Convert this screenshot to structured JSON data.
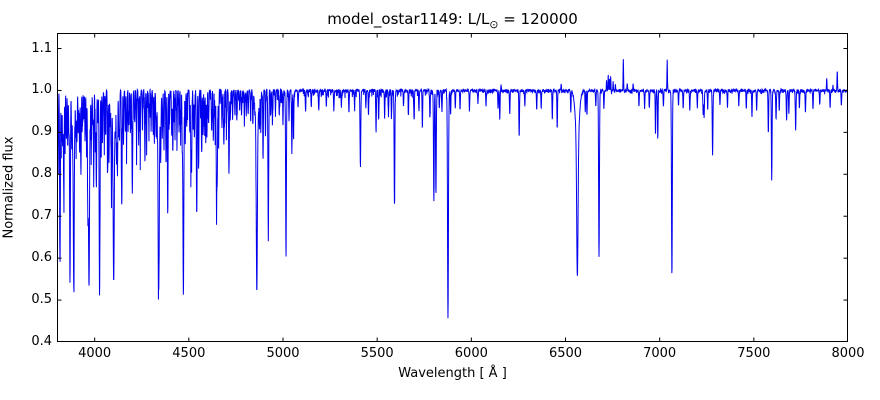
{
  "figure": {
    "title_prefix": "model_ostar1149: L/L",
    "title_sub": "⊙",
    "title_suffix": " = 120000",
    "xlabel": "Wavelength [ Å ]",
    "ylabel": "Normalized flux"
  },
  "chart_data": {
    "type": "line",
    "title": "model_ostar1149: L/L⊙ = 120000",
    "xlabel": "Wavelength [ Å ]",
    "ylabel": "Normalized flux",
    "xlim": [
      3800,
      8000
    ],
    "ylim": [
      0.4,
      1.137
    ],
    "xticks": [
      4000,
      4500,
      5000,
      5500,
      6000,
      6500,
      7000,
      7500,
      8000
    ],
    "yticks": [
      0.4,
      0.5,
      0.6,
      0.7,
      0.8,
      0.9,
      1.0,
      1.1
    ],
    "x_tick_labels": [
      "4000",
      "4500",
      "5000",
      "5500",
      "6000",
      "6500",
      "7000",
      "7500",
      "8000"
    ],
    "y_tick_labels": [
      "0.4",
      "0.5",
      "0.6",
      "0.7",
      "0.8",
      "0.9",
      "1.0",
      "1.1"
    ],
    "grid": false,
    "legend": null,
    "line_color": "#0000EE",
    "axis_color": "#000000",
    "background": "#FFFFFF",
    "continuum_flux": 1.0,
    "flux_min_overall": 0.458,
    "flux_max_overall": 1.073,
    "absorption_lines_format": [
      "wavelength_A",
      "depth_below_continuum",
      "sigma_A"
    ],
    "absorption_lines": [
      [
        3806,
        0.2,
        1.5
      ],
      [
        3816,
        0.385,
        2.0
      ],
      [
        3823,
        0.1,
        1.5
      ],
      [
        3830,
        0.13,
        1.8
      ],
      [
        3836,
        0.24,
        2.0
      ],
      [
        3843,
        0.07,
        1.5
      ],
      [
        3850,
        0.12,
        1.5
      ],
      [
        3857,
        0.14,
        1.5
      ],
      [
        3863,
        0.1,
        1.5
      ],
      [
        3869,
        0.46,
        2.0
      ],
      [
        3878,
        0.11,
        1.5
      ],
      [
        3883,
        0.08,
        1.5
      ],
      [
        3889,
        0.41,
        2.5
      ],
      [
        3889,
        0.06,
        7
      ],
      [
        3900,
        0.09,
        1.5
      ],
      [
        3906,
        0.12,
        1.5
      ],
      [
        3913,
        0.1,
        1.5
      ],
      [
        3920,
        0.15,
        1.6
      ],
      [
        3927,
        0.2,
        1.8
      ],
      [
        3935,
        0.09,
        1.5
      ],
      [
        3942,
        0.07,
        1.5
      ],
      [
        3949,
        0.12,
        1.5
      ],
      [
        3956,
        0.1,
        1.5
      ],
      [
        3964,
        0.25,
        1.8
      ],
      [
        3970,
        0.4,
        2.5
      ],
      [
        3970,
        0.07,
        7
      ],
      [
        3983,
        0.11,
        1.5
      ],
      [
        3990,
        0.08,
        1.5
      ],
      [
        3995,
        0.2,
        1.6
      ],
      [
        4004,
        0.1,
        1.5
      ],
      [
        4009,
        0.23,
        1.8
      ],
      [
        4017,
        0.08,
        1.5
      ],
      [
        4026,
        0.49,
        2.2
      ],
      [
        4035,
        0.09,
        1.5
      ],
      [
        4042,
        0.12,
        1.5
      ],
      [
        4051,
        0.08,
        1.5
      ],
      [
        4058,
        0.11,
        1.5
      ],
      [
        4069,
        0.2,
        1.6
      ],
      [
        4076,
        0.17,
        1.6
      ],
      [
        4083,
        0.08,
        1.5
      ],
      [
        4089,
        0.21,
        1.6
      ],
      [
        4101,
        0.38,
        2.8
      ],
      [
        4101,
        0.08,
        8
      ],
      [
        4110,
        0.07,
        1.5
      ],
      [
        4116,
        0.16,
        1.6
      ],
      [
        4121,
        0.2,
        1.6
      ],
      [
        4128,
        0.1,
        1.5
      ],
      [
        4132,
        0.12,
        1.5
      ],
      [
        4144,
        0.28,
        1.8
      ],
      [
        4153,
        0.13,
        1.5
      ],
      [
        4163,
        0.1,
        1.5
      ],
      [
        4170,
        0.11,
        1.5
      ],
      [
        4181,
        0.08,
        1.5
      ],
      [
        4190,
        0.1,
        1.5
      ],
      [
        4200,
        0.24,
        2.0
      ],
      [
        4213,
        0.08,
        1.5
      ],
      [
        4222,
        0.1,
        1.5
      ],
      [
        4233,
        0.11,
        1.5
      ],
      [
        4242,
        0.09,
        1.5
      ],
      [
        4254,
        0.1,
        1.5
      ],
      [
        4267,
        0.17,
        1.6
      ],
      [
        4276,
        0.1,
        1.5
      ],
      [
        4288,
        0.09,
        1.5
      ],
      [
        4300,
        0.08,
        1.5
      ],
      [
        4310,
        0.1,
        1.5
      ],
      [
        4317,
        0.12,
        1.5
      ],
      [
        4326,
        0.09,
        1.5
      ],
      [
        4340,
        0.39,
        2.8
      ],
      [
        4340,
        0.09,
        8
      ],
      [
        4351,
        0.11,
        1.5
      ],
      [
        4360,
        0.09,
        1.5
      ],
      [
        4368,
        0.13,
        1.5
      ],
      [
        4379,
        0.18,
        1.6
      ],
      [
        4388,
        0.3,
        1.8
      ],
      [
        4397,
        0.08,
        1.5
      ],
      [
        4409,
        0.11,
        1.5
      ],
      [
        4415,
        0.15,
        1.6
      ],
      [
        4426,
        0.09,
        1.5
      ],
      [
        4437,
        0.12,
        1.5
      ],
      [
        4448,
        0.1,
        1.5
      ],
      [
        4457,
        0.08,
        1.5
      ],
      [
        4465,
        0.12,
        1.5
      ],
      [
        4471,
        0.49,
        2.4
      ],
      [
        4481,
        0.13,
        1.5
      ],
      [
        4489,
        0.09,
        1.5
      ],
      [
        4505,
        0.1,
        1.5
      ],
      [
        4511,
        0.16,
        1.5
      ],
      [
        4515,
        0.17,
        1.5
      ],
      [
        4524,
        0.09,
        1.5
      ],
      [
        4530,
        0.11,
        1.5
      ],
      [
        4542,
        0.3,
        2.0
      ],
      [
        4552,
        0.19,
        1.6
      ],
      [
        4568,
        0.15,
        1.5
      ],
      [
        4575,
        0.11,
        1.5
      ],
      [
        4583,
        0.09,
        1.5
      ],
      [
        4590,
        0.13,
        1.5
      ],
      [
        4596,
        0.11,
        1.5
      ],
      [
        4605,
        0.08,
        1.5
      ],
      [
        4621,
        0.1,
        1.5
      ],
      [
        4630,
        0.12,
        1.5
      ],
      [
        4640,
        0.1,
        1.5
      ],
      [
        4647,
        0.275,
        1.8
      ],
      [
        4651,
        0.2,
        1.6
      ],
      [
        4658,
        0.14,
        1.5
      ],
      [
        4676,
        0.09,
        1.5
      ],
      [
        4686,
        0.13,
        2.0
      ],
      [
        4700,
        0.08,
        1.5
      ],
      [
        4713,
        0.2,
        1.8
      ],
      [
        4720,
        0.07,
        1.5
      ],
      [
        4733,
        0.05,
        1.5
      ],
      [
        4745,
        0.06,
        1.5
      ],
      [
        4755,
        0.07,
        1.5
      ],
      [
        4770,
        0.05,
        1.5
      ],
      [
        4780,
        0.06,
        1.5
      ],
      [
        4795,
        0.07,
        1.5
      ],
      [
        4805,
        0.05,
        1.5
      ],
      [
        4815,
        0.06,
        1.5
      ],
      [
        4828,
        0.07,
        1.5
      ],
      [
        4840,
        0.08,
        1.5
      ],
      [
        4861,
        0.39,
        2.8
      ],
      [
        4861,
        0.09,
        8
      ],
      [
        4875,
        0.07,
        1.5
      ],
      [
        4882,
        0.1,
        1.5
      ],
      [
        4894,
        0.165,
        1.6
      ],
      [
        4907,
        0.11,
        1.5
      ],
      [
        4922,
        0.34,
        2.0
      ],
      [
        4935,
        0.06,
        1.5
      ],
      [
        4944,
        0.08,
        1.5
      ],
      [
        4960,
        0.05,
        1.5
      ],
      [
        4980,
        0.06,
        1.5
      ],
      [
        5000,
        0.07,
        1.5
      ],
      [
        5016,
        0.39,
        2.0
      ],
      [
        5032,
        0.07,
        1.5
      ],
      [
        5047,
        0.15,
        1.6
      ],
      [
        5056,
        0.12,
        1.5
      ],
      [
        5080,
        0.04,
        1.5
      ],
      [
        5120,
        0.05,
        1.5
      ],
      [
        5150,
        0.04,
        1.5
      ],
      [
        5190,
        0.05,
        1.5
      ],
      [
        5230,
        0.04,
        1.5
      ],
      [
        5270,
        0.05,
        1.5
      ],
      [
        5310,
        0.04,
        1.5
      ],
      [
        5350,
        0.05,
        1.5
      ],
      [
        5380,
        0.04,
        1.5
      ],
      [
        5411,
        0.18,
        2.0
      ],
      [
        5440,
        0.04,
        1.5
      ],
      [
        5454,
        0.06,
        1.5
      ],
      [
        5494,
        0.1,
        1.5
      ],
      [
        5508,
        0.07,
        1.5
      ],
      [
        5540,
        0.06,
        1.5
      ],
      [
        5560,
        0.05,
        1.5
      ],
      [
        5576,
        0.06,
        1.5
      ],
      [
        5592,
        0.27,
        1.9
      ],
      [
        5640,
        0.04,
        1.5
      ],
      [
        5666,
        0.06,
        1.5
      ],
      [
        5696,
        0.07,
        1.6
      ],
      [
        5722,
        0.05,
        1.5
      ],
      [
        5740,
        0.09,
        1.5
      ],
      [
        5780,
        0.06,
        1.5
      ],
      [
        5801,
        0.265,
        1.9
      ],
      [
        5812,
        0.245,
        1.9
      ],
      [
        5830,
        0.04,
        1.5
      ],
      [
        5844,
        0.05,
        1.5
      ],
      [
        5876,
        0.542,
        2.4
      ],
      [
        5890,
        0.06,
        1.5
      ],
      [
        5915,
        0.04,
        1.5
      ],
      [
        5940,
        0.045,
        1.5
      ],
      [
        5990,
        0.05,
        1.5
      ],
      [
        6035,
        0.03,
        1.5
      ],
      [
        6078,
        0.035,
        1.5
      ],
      [
        6142,
        0.045,
        1.5
      ],
      [
        6151,
        0.07,
        1.5
      ],
      [
        6204,
        0.055,
        1.5
      ],
      [
        6254,
        0.11,
        1.6
      ],
      [
        6284,
        0.035,
        1.5
      ],
      [
        6347,
        0.045,
        1.5
      ],
      [
        6371,
        0.04,
        1.5
      ],
      [
        6430,
        0.07,
        1.5
      ],
      [
        6456,
        0.09,
        1.6
      ],
      [
        6528,
        0.05,
        1.5
      ],
      [
        6563,
        0.325,
        3.5
      ],
      [
        6563,
        0.12,
        10
      ],
      [
        6605,
        0.05,
        1.5
      ],
      [
        6614,
        0.06,
        1.5
      ],
      [
        6661,
        0.04,
        1.5
      ],
      [
        6678,
        0.4,
        2.1
      ],
      [
        6704,
        0.045,
        1.5
      ],
      [
        6890,
        0.035,
        1.5
      ],
      [
        6920,
        0.04,
        1.5
      ],
      [
        6945,
        0.045,
        1.5
      ],
      [
        6978,
        0.1,
        1.6
      ],
      [
        6990,
        0.115,
        1.6
      ],
      [
        7020,
        0.04,
        1.5
      ],
      [
        7065,
        0.444,
        2.1
      ],
      [
        7100,
        0.035,
        1.5
      ],
      [
        7125,
        0.045,
        1.5
      ],
      [
        7160,
        0.05,
        1.5
      ],
      [
        7200,
        0.04,
        1.5
      ],
      [
        7231,
        0.06,
        1.5
      ],
      [
        7236,
        0.065,
        1.5
      ],
      [
        7255,
        0.04,
        1.5
      ],
      [
        7281,
        0.155,
        1.8
      ],
      [
        7320,
        0.035,
        1.5
      ],
      [
        7360,
        0.04,
        1.5
      ],
      [
        7420,
        0.035,
        1.5
      ],
      [
        7460,
        0.045,
        1.5
      ],
      [
        7490,
        0.065,
        1.5
      ],
      [
        7515,
        0.05,
        1.5
      ],
      [
        7577,
        0.105,
        1.6
      ],
      [
        7595,
        0.215,
        1.8
      ],
      [
        7618,
        0.07,
        1.6
      ],
      [
        7635,
        0.05,
        1.5
      ],
      [
        7674,
        0.072,
        1.6
      ],
      [
        7686,
        0.055,
        1.5
      ],
      [
        7722,
        0.096,
        1.7
      ],
      [
        7742,
        0.04,
        1.5
      ],
      [
        7774,
        0.055,
        1.6
      ],
      [
        7814,
        0.045,
        1.5
      ],
      [
        7850,
        0.035,
        1.5
      ],
      [
        7905,
        0.04,
        1.5
      ],
      [
        7965,
        0.035,
        1.5
      ]
    ],
    "emission_lines_format": [
      "wavelength_A",
      "height_above_continuum",
      "sigma_A"
    ],
    "emission_lines": [
      [
        4649,
        0.012,
        2.5
      ],
      [
        6158,
        0.015,
        1.2
      ],
      [
        6477,
        0.018,
        1.2
      ],
      [
        6718,
        0.022,
        1.2
      ],
      [
        6727,
        0.038,
        1.2
      ],
      [
        6734,
        0.028,
        1.2
      ],
      [
        6740,
        0.034,
        1.2
      ],
      [
        6753,
        0.02,
        1.2
      ],
      [
        6765,
        0.014,
        1.2
      ],
      [
        6807,
        0.073,
        1.3
      ],
      [
        6828,
        0.018,
        1.2
      ],
      [
        6859,
        0.016,
        1.2
      ],
      [
        7040,
        0.071,
        1.3
      ],
      [
        7887,
        0.032,
        1.3
      ],
      [
        7920,
        0.011,
        1.2
      ],
      [
        7943,
        0.05,
        1.3
      ]
    ],
    "weak_line_forest": [
      {
        "range": [
          3800,
          4250
        ],
        "max_depth": 0.1
      },
      {
        "range": [
          4250,
          4700
        ],
        "max_depth": 0.075
      },
      {
        "range": [
          4700,
          5000
        ],
        "max_depth": 0.035
      },
      {
        "range": [
          5000,
          5900
        ],
        "max_depth": 0.018
      },
      {
        "range": [
          5900,
          8000
        ],
        "max_depth": 0.007
      }
    ],
    "noise_jitter": 0.003
  }
}
